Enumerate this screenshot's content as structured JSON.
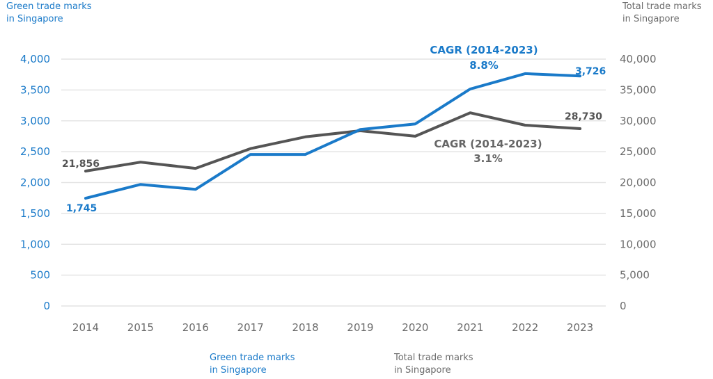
{
  "chart_data": {
    "type": "line",
    "categories": [
      "2014",
      "2015",
      "2016",
      "2017",
      "2018",
      "2019",
      "2020",
      "2021",
      "2022",
      "2023"
    ],
    "series": [
      {
        "name": "Green trade marks in Singapore",
        "axis": "left",
        "color": "#1a7ac9",
        "values": [
          1745,
          1970,
          1890,
          2455,
          2455,
          2860,
          2950,
          3515,
          3765,
          3726
        ],
        "start_label": "1,745",
        "end_label": "3,726",
        "cagr_title": "CAGR (2014-2023)",
        "cagr_value": "8.8%"
      },
      {
        "name": "Total trade marks in Singapore",
        "axis": "right",
        "color": "#555555",
        "values": [
          21856,
          23300,
          22300,
          25500,
          27400,
          28400,
          27500,
          31300,
          29300,
          28730
        ],
        "start_label": "21,856",
        "end_label": "28,730",
        "cagr_title": "CAGR (2014-2023)",
        "cagr_value": "3.1%"
      }
    ],
    "left_axis": {
      "title_line1": "Green trade marks",
      "title_line2": "in Singapore",
      "ylim": [
        0,
        4000
      ],
      "ticks": [
        "0",
        "500",
        "1,000",
        "1,500",
        "2,000",
        "2,500",
        "3,000",
        "3,500",
        "4,000"
      ],
      "tick_values": [
        0,
        500,
        1000,
        1500,
        2000,
        2500,
        3000,
        3500,
        4000
      ]
    },
    "right_axis": {
      "title_line1": "Total trade marks",
      "title_line2": "in Singapore",
      "ylim": [
        0,
        40000
      ],
      "ticks": [
        "0",
        "5,000",
        "10,000",
        "15,000",
        "20,000",
        "25,000",
        "30,000",
        "35,000",
        "40,000"
      ]
    },
    "grid": true,
    "legend": {
      "placement": "bottom",
      "items": [
        {
          "line1": "Green trade marks",
          "line2": "in Singapore",
          "color": "#1a7ac9"
        },
        {
          "line1": "Total trade marks",
          "line2": "in Singapore",
          "color": "#6b6b6b"
        }
      ]
    }
  }
}
